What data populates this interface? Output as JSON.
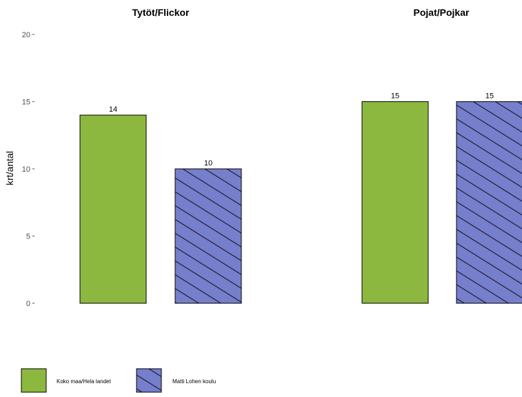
{
  "chart_data": {
    "type": "bar",
    "ylabel": "krt/antal",
    "ylim": [
      0,
      20
    ],
    "yticks": [
      0,
      5,
      10,
      15,
      20
    ],
    "grid": false,
    "legend_position": "bottom-left",
    "series": [
      {
        "name": "Koko maa/Hela landet",
        "color": "#8db83f",
        "pattern": "none"
      },
      {
        "name": "Matti Lohen koulu",
        "color": "#757fcc",
        "pattern": "diagonal-hatch"
      }
    ],
    "panels": [
      {
        "title": "Tytöt/Flickor",
        "values": [
          14,
          10
        ],
        "labels": [
          "14",
          "10"
        ]
      },
      {
        "title": "Pojat/Pojkar",
        "values": [
          15,
          15
        ],
        "labels": [
          "15",
          "15"
        ]
      }
    ]
  }
}
